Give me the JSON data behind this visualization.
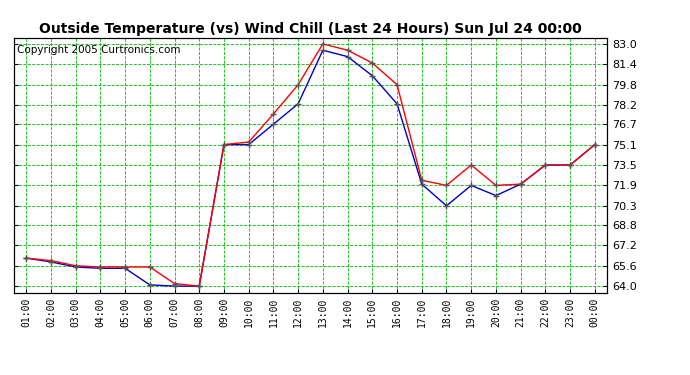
{
  "title": "Outside Temperature (vs) Wind Chill (Last 24 Hours) Sun Jul 24 00:00",
  "copyright": "Copyright 2005 Curtronics.com",
  "x_labels": [
    "01:00",
    "02:00",
    "03:00",
    "04:00",
    "05:00",
    "06:00",
    "07:00",
    "08:00",
    "09:00",
    "10:00",
    "11:00",
    "12:00",
    "13:00",
    "14:00",
    "15:00",
    "16:00",
    "17:00",
    "18:00",
    "19:00",
    "20:00",
    "21:00",
    "22:00",
    "23:00",
    "00:00"
  ],
  "y_ticks": [
    64.0,
    65.6,
    67.2,
    68.8,
    70.3,
    71.9,
    73.5,
    75.1,
    76.7,
    78.2,
    79.8,
    81.4,
    83.0
  ],
  "ylim_min": 63.5,
  "ylim_max": 83.5,
  "outside_temp": [
    66.2,
    66.0,
    65.6,
    65.5,
    65.5,
    65.5,
    64.2,
    64.0,
    75.1,
    75.3,
    77.5,
    79.8,
    83.0,
    82.5,
    81.5,
    79.8,
    72.3,
    71.9,
    73.5,
    71.9,
    72.0,
    73.5,
    73.5,
    75.1
  ],
  "wind_chill": [
    66.2,
    65.9,
    65.5,
    65.4,
    65.4,
    64.1,
    64.0,
    64.0,
    75.1,
    75.1,
    76.7,
    78.3,
    82.5,
    82.0,
    80.5,
    78.3,
    72.0,
    70.3,
    71.9,
    71.1,
    72.0,
    73.5,
    73.5,
    75.1
  ],
  "outside_color": "#ff0000",
  "windchill_color": "#0000cc",
  "bg_color": "#ffffff",
  "plot_bg_color": "#ffffff",
  "grid_color": "#00bb00",
  "title_fontsize": 10,
  "copyright_fontsize": 7.5
}
